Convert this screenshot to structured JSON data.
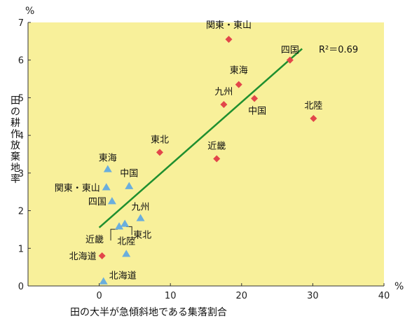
{
  "colors": {
    "plot_background": "#f8f09a",
    "diamond": "#e2464a",
    "triangle": "#6aaedd",
    "trendline": "#1f8f2f",
    "axis": "#333333"
  },
  "chart_data": {
    "type": "scatter",
    "x_unit": "%",
    "y_unit": "%",
    "xlabel": "田の大半が急傾斜地である集落割合",
    "ylabel": "田の耕作放棄地率",
    "xlim": [
      -10,
      40
    ],
    "ylim": [
      0,
      7
    ],
    "x_ticks": [
      0,
      10,
      20,
      30,
      40
    ],
    "y_ticks": [
      0,
      1,
      2,
      3,
      4,
      5,
      6,
      7
    ],
    "grid": false,
    "series": [
      {
        "marker": "diamond",
        "points": [
          {
            "label": "関東・東山",
            "x": 18.2,
            "y": 6.55
          },
          {
            "label": "四国",
            "x": 26.8,
            "y": 6.0
          },
          {
            "label": "東海",
            "x": 19.6,
            "y": 5.35
          },
          {
            "label": "九州",
            "x": 17.5,
            "y": 4.82
          },
          {
            "label": "中国",
            "x": 21.8,
            "y": 4.98
          },
          {
            "label": "北陸",
            "x": 30.1,
            "y": 4.45
          },
          {
            "label": "東北",
            "x": 8.5,
            "y": 3.55
          },
          {
            "label": "近畿",
            "x": 16.5,
            "y": 3.38
          },
          {
            "label": "北海道",
            "x": 0.4,
            "y": 0.8
          }
        ]
      },
      {
        "marker": "triangle",
        "points": [
          {
            "label": "東海",
            "x": 1.2,
            "y": 3.1
          },
          {
            "label": "関東・東山",
            "x": 1.0,
            "y": 2.62
          },
          {
            "label": "中国",
            "x": 4.2,
            "y": 2.65
          },
          {
            "label": "四国",
            "x": 1.8,
            "y": 2.25
          },
          {
            "label": "九州",
            "x": 5.8,
            "y": 1.8
          },
          {
            "label": "東北",
            "x": 3.6,
            "y": 1.65
          },
          {
            "label": "近畿",
            "x": 2.8,
            "y": 1.58
          },
          {
            "label": "北陸",
            "x": 3.8,
            "y": 0.85
          },
          {
            "label": "北海道",
            "x": 0.6,
            "y": 0.12
          }
        ]
      }
    ],
    "trendline": {
      "x1": 0,
      "y1": 1.55,
      "x2": 28.5,
      "y2": 6.3
    },
    "annotation": "R²＝0.69"
  }
}
